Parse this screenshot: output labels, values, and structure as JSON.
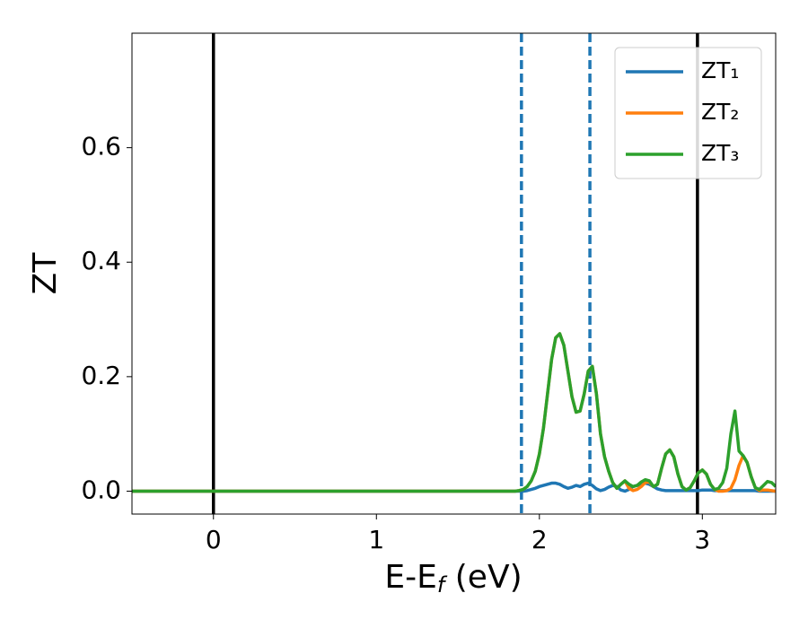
{
  "chart_data": {
    "type": "line",
    "ylabel": "ZT",
    "xlabel": [
      "E-E",
      "f",
      " (eV)"
    ],
    "xlim": [
      -0.5,
      3.45
    ],
    "ylim": [
      -0.04,
      0.8
    ],
    "xticks": [
      0,
      1,
      2,
      3
    ],
    "yticks": [
      {
        "value": 0,
        "label": "0.0"
      },
      {
        "value": 0.2,
        "label": "0.2"
      },
      {
        "value": 0.4,
        "label": "0.4"
      },
      {
        "value": 0.6,
        "label": "0.6"
      }
    ],
    "legend": "upper right",
    "vlines": [
      {
        "x": 0,
        "color": "#000000",
        "style": "solid"
      },
      {
        "x": 2.97,
        "color": "#000000",
        "style": "solid"
      },
      {
        "x": 1.89,
        "color": "#1f77b4",
        "style": "dashed"
      },
      {
        "x": 2.31,
        "color": "#1f77b4",
        "style": "dashed"
      }
    ],
    "x": [
      -0.5,
      1.8,
      1.85,
      1.875,
      1.9,
      1.925,
      1.95,
      1.975,
      2.0,
      2.025,
      2.05,
      2.075,
      2.1,
      2.125,
      2.15,
      2.175,
      2.2,
      2.225,
      2.25,
      2.275,
      2.3,
      2.325,
      2.35,
      2.375,
      2.4,
      2.425,
      2.45,
      2.475,
      2.5,
      2.525,
      2.55,
      2.575,
      2.6,
      2.625,
      2.65,
      2.675,
      2.7,
      2.725,
      2.75,
      2.775,
      2.8,
      2.825,
      2.85,
      2.875,
      2.9,
      2.925,
      2.95,
      2.975,
      3.0,
      3.025,
      3.05,
      3.075,
      3.1,
      3.125,
      3.15,
      3.175,
      3.2,
      3.225,
      3.25,
      3.275,
      3.3,
      3.325,
      3.35,
      3.375,
      3.4,
      3.425,
      3.45
    ],
    "series": [
      {
        "name": "ZT₁",
        "color": "#1f77b4",
        "values": [
          0,
          0,
          0,
          0,
          0,
          0.001,
          0.003,
          0.005,
          0.008,
          0.01,
          0.012,
          0.014,
          0.014,
          0.012,
          0.008,
          0.005,
          0.007,
          0.01,
          0.008,
          0.012,
          0.014,
          0.01,
          0.004,
          0.001,
          0.003,
          0.007,
          0.01,
          0.008,
          0.002,
          0,
          0.003,
          0.008,
          0.01,
          0.012,
          0.014,
          0.012,
          0.008,
          0.004,
          0.002,
          0.001,
          0.001,
          0.001,
          0.001,
          0.001,
          0.001,
          0.001,
          0.001,
          0.001,
          0.002,
          0.002,
          0.002,
          0.001,
          0.001,
          0.001,
          0.001,
          0.001,
          0.001,
          0.001,
          0.001,
          0.001,
          0.001,
          0.001,
          0,
          0,
          0,
          0,
          0
        ]
      },
      {
        "name": "ZT₂",
        "color": "#ff7f0e",
        "values": [
          0,
          0,
          0,
          0.001,
          0.003,
          0.008,
          0.018,
          0.035,
          0.065,
          0.11,
          0.17,
          0.23,
          0.268,
          0.275,
          0.255,
          0.21,
          0.165,
          0.138,
          0.14,
          0.17,
          0.21,
          0.218,
          0.17,
          0.1,
          0.06,
          0.035,
          0.015,
          0.005,
          0.012,
          0.018,
          0.005,
          0.001,
          0.003,
          0.008,
          0.015,
          0.016,
          0.008,
          0.012,
          0.04,
          0.065,
          0.072,
          0.06,
          0.03,
          0.008,
          0.002,
          0.006,
          0.018,
          0.032,
          0.037,
          0.03,
          0.012,
          0.003,
          0,
          0,
          0.001,
          0.005,
          0.02,
          0.045,
          0.062,
          0.05,
          0.025,
          0.006,
          0.001,
          0.002,
          0.002,
          0.001,
          0
        ]
      },
      {
        "name": "ZT₃",
        "color": "#2ca02c",
        "values": [
          0,
          0,
          0,
          0.001,
          0.003,
          0.008,
          0.018,
          0.035,
          0.065,
          0.11,
          0.17,
          0.23,
          0.268,
          0.275,
          0.255,
          0.21,
          0.165,
          0.138,
          0.14,
          0.17,
          0.21,
          0.218,
          0.17,
          0.1,
          0.06,
          0.035,
          0.015,
          0.005,
          0.012,
          0.018,
          0.012,
          0.008,
          0.01,
          0.016,
          0.02,
          0.018,
          0.008,
          0.012,
          0.04,
          0.065,
          0.072,
          0.06,
          0.03,
          0.008,
          0.002,
          0.006,
          0.018,
          0.032,
          0.037,
          0.03,
          0.012,
          0.003,
          0.005,
          0.015,
          0.04,
          0.1,
          0.14,
          0.07,
          0.062,
          0.05,
          0.025,
          0.006,
          0.003,
          0.01,
          0.017,
          0.015,
          0.008
        ]
      }
    ]
  }
}
